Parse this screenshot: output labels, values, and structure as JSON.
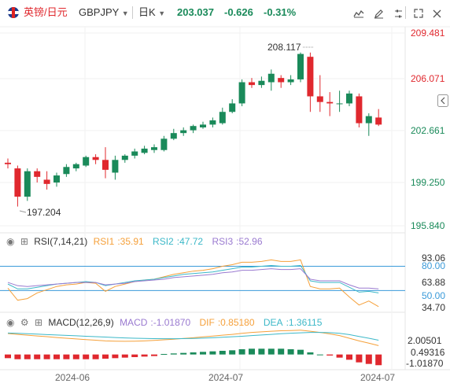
{
  "header": {
    "pair_cn": "英镑/日元",
    "symbol": "GBPJPY",
    "timeframe": "日K",
    "price": "203.037",
    "change": "-0.626",
    "change_pct": "-0.31%",
    "icons": [
      "area-chart-icon",
      "pencil-icon",
      "settings-icon",
      "expand-icon",
      "close-icon"
    ]
  },
  "colors": {
    "up": "#1a8a5a",
    "down": "#e0282e",
    "price_text": "#e0282e",
    "rsi1": "#f5a03a",
    "rsi2": "#3cb8c8",
    "rsi3": "#9a7ad0",
    "dif": "#f5a03a",
    "dea": "#3cb8c8",
    "ref_line": "#3a9ad9"
  },
  "chart_data": [
    {
      "type": "candlestick",
      "title": "GBPJPY 日K",
      "price_axis": [
        "209.481",
        "206.071",
        "202.661",
        "199.250",
        "195.840"
      ],
      "ylim": [
        195.84,
        209.481
      ],
      "annotations": {
        "high": "208.117",
        "low": "197.204"
      },
      "x_ticks": [
        "2024-06",
        "2024-07",
        "2024-07"
      ],
      "candles": [
        {
          "o": 200.3,
          "h": 200.6,
          "l": 199.9,
          "c": 200.2
        },
        {
          "o": 199.9,
          "h": 200.1,
          "l": 197.2,
          "c": 197.9
        },
        {
          "o": 197.9,
          "h": 199.9,
          "l": 197.6,
          "c": 199.7
        },
        {
          "o": 199.7,
          "h": 199.9,
          "l": 198.9,
          "c": 199.3
        },
        {
          "o": 199.1,
          "h": 199.7,
          "l": 198.4,
          "c": 198.8
        },
        {
          "o": 198.9,
          "h": 199.6,
          "l": 198.6,
          "c": 199.4
        },
        {
          "o": 199.5,
          "h": 200.2,
          "l": 199.3,
          "c": 200.0
        },
        {
          "o": 199.9,
          "h": 200.3,
          "l": 199.7,
          "c": 200.2
        },
        {
          "o": 200.1,
          "h": 200.8,
          "l": 200.0,
          "c": 200.7
        },
        {
          "o": 200.7,
          "h": 200.9,
          "l": 200.2,
          "c": 200.5
        },
        {
          "o": 200.5,
          "h": 201.4,
          "l": 199.2,
          "c": 199.8
        },
        {
          "o": 199.6,
          "h": 200.8,
          "l": 199.1,
          "c": 200.5
        },
        {
          "o": 200.5,
          "h": 200.9,
          "l": 200.3,
          "c": 200.8
        },
        {
          "o": 200.8,
          "h": 201.3,
          "l": 200.6,
          "c": 201.1
        },
        {
          "o": 201.0,
          "h": 201.5,
          "l": 200.9,
          "c": 201.3
        },
        {
          "o": 201.2,
          "h": 201.6,
          "l": 201.0,
          "c": 201.4
        },
        {
          "o": 201.2,
          "h": 202.2,
          "l": 201.1,
          "c": 202.0
        },
        {
          "o": 202.0,
          "h": 202.7,
          "l": 201.9,
          "c": 202.4
        },
        {
          "o": 202.4,
          "h": 202.8,
          "l": 202.2,
          "c": 202.6
        },
        {
          "o": 202.6,
          "h": 203.0,
          "l": 202.4,
          "c": 202.9
        },
        {
          "o": 202.8,
          "h": 203.2,
          "l": 202.7,
          "c": 203.0
        },
        {
          "o": 203.0,
          "h": 203.5,
          "l": 202.8,
          "c": 203.3
        },
        {
          "o": 203.1,
          "h": 204.2,
          "l": 203.0,
          "c": 203.9
        },
        {
          "o": 203.9,
          "h": 204.8,
          "l": 203.8,
          "c": 204.5
        },
        {
          "o": 204.5,
          "h": 206.2,
          "l": 204.3,
          "c": 206.0
        },
        {
          "o": 206.0,
          "h": 206.3,
          "l": 205.6,
          "c": 205.8
        },
        {
          "o": 205.8,
          "h": 206.4,
          "l": 205.6,
          "c": 206.1
        },
        {
          "o": 206.0,
          "h": 206.9,
          "l": 205.4,
          "c": 206.6
        },
        {
          "o": 206.3,
          "h": 206.5,
          "l": 205.6,
          "c": 206.0
        },
        {
          "o": 206.0,
          "h": 206.5,
          "l": 205.8,
          "c": 206.2
        },
        {
          "o": 206.2,
          "h": 208.1,
          "l": 206.0,
          "c": 208.0
        },
        {
          "o": 207.8,
          "h": 208.1,
          "l": 203.9,
          "c": 205.0
        },
        {
          "o": 205.0,
          "h": 206.5,
          "l": 203.9,
          "c": 204.6
        },
        {
          "o": 204.6,
          "h": 205.3,
          "l": 203.6,
          "c": 204.5
        },
        {
          "o": 204.5,
          "h": 205.4,
          "l": 203.9,
          "c": 204.5
        },
        {
          "o": 204.5,
          "h": 205.4,
          "l": 204.3,
          "c": 205.2
        },
        {
          "o": 205.0,
          "h": 205.2,
          "l": 202.8,
          "c": 203.1
        },
        {
          "o": 203.1,
          "h": 203.8,
          "l": 202.2,
          "c": 203.6
        },
        {
          "o": 203.5,
          "h": 204.1,
          "l": 202.9,
          "c": 203.0
        }
      ]
    },
    {
      "type": "line",
      "title": "RSI(7,14,21)",
      "ylim": [
        25,
        100
      ],
      "axis_labels": [
        "93.06",
        "80.00",
        "63.88",
        "50.00",
        "34.70"
      ],
      "ref_lines": [
        80,
        50
      ],
      "legend": [
        {
          "name": "RSI1",
          "value": "35.91"
        },
        {
          "name": "RSI2",
          "value": "47.72"
        },
        {
          "name": "RSI3",
          "value": "52.96"
        }
      ],
      "series": [
        {
          "values": [
            53,
            38,
            40,
            47,
            51,
            55,
            57,
            58,
            60,
            59,
            49,
            55,
            58,
            61,
            63,
            64,
            67,
            70,
            72,
            74,
            75,
            77,
            80,
            82,
            85,
            85,
            86,
            88,
            86,
            86,
            88,
            55,
            52,
            52,
            53,
            42,
            32,
            37,
            30
          ]
        },
        {
          "values": [
            58,
            52,
            52,
            54,
            56,
            58,
            59,
            60,
            61,
            60,
            56,
            58,
            60,
            62,
            63,
            64,
            66,
            68,
            70,
            71,
            72,
            73,
            75,
            77,
            79,
            79,
            80,
            81,
            80,
            80,
            81,
            62,
            60,
            60,
            60,
            54,
            48,
            49,
            47
          ]
        },
        {
          "values": [
            60,
            56,
            55,
            56,
            57,
            58,
            59,
            60,
            60,
            60,
            57,
            58,
            59,
            61,
            62,
            63,
            64,
            66,
            67,
            68,
            69,
            70,
            72,
            73,
            75,
            75,
            76,
            77,
            76,
            76,
            77,
            64,
            62,
            62,
            62,
            57,
            53,
            53,
            52
          ]
        }
      ]
    },
    {
      "type": "bar",
      "title": "MACD(12,26,9)",
      "ylim": [
        -1.3,
        2.3
      ],
      "axis_labels": [
        "2.00501",
        "0.49316",
        "-1.01870"
      ],
      "legend": [
        {
          "name": "MACD",
          "value": "-1.01870"
        },
        {
          "name": "DIF",
          "value": "0.85180"
        },
        {
          "name": "DEA",
          "value": "1.36115"
        }
      ],
      "values": [
        -0.35,
        -0.45,
        -0.45,
        -0.45,
        -0.45,
        -0.45,
        -0.45,
        -0.45,
        -0.45,
        -0.45,
        -0.4,
        -0.35,
        -0.3,
        -0.25,
        -0.2,
        -0.15,
        0.05,
        0.1,
        0.15,
        0.2,
        0.25,
        0.3,
        0.35,
        0.4,
        0.5,
        0.55,
        0.55,
        0.55,
        0.55,
        0.5,
        0.45,
        0.2,
        0.0,
        -0.1,
        -0.3,
        -0.5,
        -0.75,
        -0.9,
        -1.02
      ],
      "series": [
        {
          "name": "DIF",
          "values": [
            2.0,
            1.92,
            1.84,
            1.77,
            1.7,
            1.62,
            1.55,
            1.48,
            1.42,
            1.36,
            1.3,
            1.27,
            1.26,
            1.27,
            1.3,
            1.34,
            1.4,
            1.46,
            1.53,
            1.6,
            1.68,
            1.76,
            1.84,
            1.92,
            2.02,
            2.1,
            2.16,
            2.22,
            2.26,
            2.28,
            2.32,
            2.22,
            2.1,
            1.96,
            1.8,
            1.55,
            1.3,
            1.08,
            0.85
          ]
        },
        {
          "name": "DEA",
          "values": [
            2.05,
            2.02,
            1.98,
            1.94,
            1.9,
            1.86,
            1.82,
            1.78,
            1.74,
            1.7,
            1.66,
            1.62,
            1.58,
            1.55,
            1.53,
            1.51,
            1.5,
            1.5,
            1.51,
            1.53,
            1.56,
            1.6,
            1.64,
            1.69,
            1.74,
            1.8,
            1.86,
            1.92,
            1.98,
            2.03,
            2.07,
            2.1,
            2.1,
            2.08,
            2.02,
            1.9,
            1.72,
            1.55,
            1.36
          ]
        }
      ]
    }
  ]
}
